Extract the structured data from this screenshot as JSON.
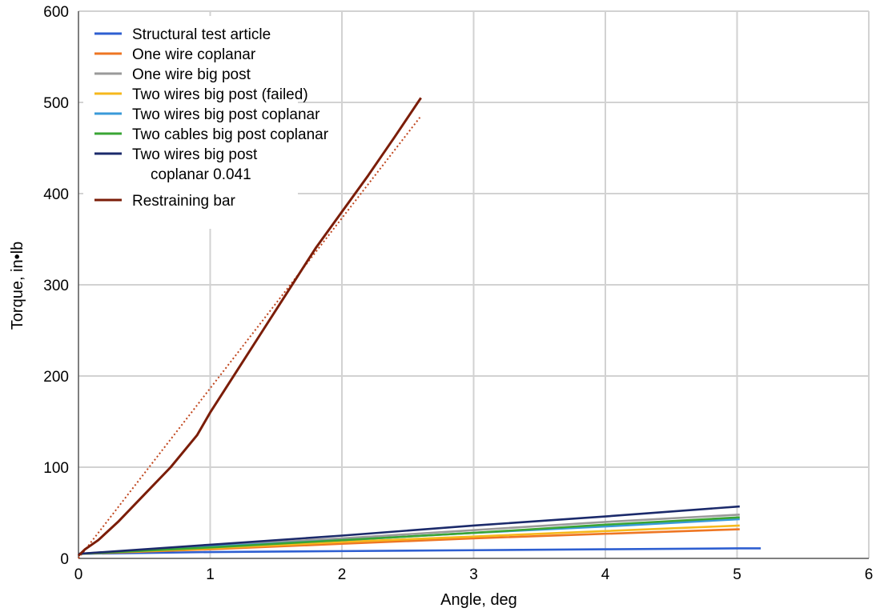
{
  "chart_data": {
    "type": "line",
    "xlabel": "Angle, deg",
    "ylabel": "Torque, in•lb",
    "xlim": [
      0,
      6
    ],
    "ylim": [
      0,
      600
    ],
    "xticks": [
      "0",
      "1",
      "2",
      "3",
      "4",
      "5",
      "6"
    ],
    "yticks": [
      "0",
      "100",
      "200",
      "300",
      "400",
      "500",
      "600"
    ],
    "grid": true,
    "legend_position": "top-left",
    "series": [
      {
        "name": "Structural test article",
        "color": "#2e5fd1",
        "x": [
          0,
          1,
          2,
          3,
          4,
          5,
          5.18
        ],
        "y": [
          5,
          7,
          8,
          9,
          10,
          11,
          11
        ]
      },
      {
        "name": "One wire coplanar",
        "color": "#ee7623",
        "x": [
          0,
          1,
          2,
          3,
          4,
          5.02
        ],
        "y": [
          5,
          10,
          16,
          22,
          27,
          32
        ]
      },
      {
        "name": "One wire big post",
        "color": "#9a9a9a",
        "x": [
          0,
          1,
          2,
          3,
          4,
          5.02
        ],
        "y": [
          5,
          14,
          22,
          31,
          40,
          48
        ]
      },
      {
        "name": "Two wires big post (failed)",
        "color": "#f6b81c",
        "x": [
          0,
          1,
          2,
          3,
          4,
          5.02
        ],
        "y": [
          5,
          11,
          18,
          24,
          30,
          36
        ]
      },
      {
        "name": "Two wires big post coplanar",
        "color": "#3a9ad9",
        "x": [
          0,
          1,
          2,
          3,
          4,
          5.02
        ],
        "y": [
          5,
          13,
          20,
          28,
          35,
          43
        ]
      },
      {
        "name": "Two cables big post coplanar",
        "color": "#3aa534",
        "x": [
          0,
          1,
          2,
          3,
          4,
          5.02
        ],
        "y": [
          5,
          12,
          20,
          28,
          37,
          45
        ]
      },
      {
        "name": "Two wires big post coplanar 0.041",
        "legend_lines": [
          "Two wires big post",
          "coplanar 0.041"
        ],
        "color": "#1b2a6b",
        "x": [
          0,
          1,
          2,
          3,
          4,
          5.02
        ],
        "y": [
          5,
          15,
          25,
          36,
          46,
          57
        ]
      },
      {
        "name": "Restraining bar",
        "color": "#7b1d08",
        "x": [
          0,
          0.05,
          0.15,
          0.3,
          0.5,
          0.7,
          0.9,
          1.0,
          1.2,
          1.4,
          1.6,
          1.8,
          2.0,
          2.2,
          2.4,
          2.6
        ],
        "y": [
          3,
          10,
          20,
          40,
          70,
          100,
          135,
          160,
          205,
          250,
          295,
          340,
          380,
          420,
          462,
          505
        ]
      }
    ],
    "trendlines": [
      {
        "series": "Restraining bar",
        "color": "#c0451c",
        "x": [
          0,
          2.6
        ],
        "y": [
          0,
          485
        ]
      }
    ]
  }
}
